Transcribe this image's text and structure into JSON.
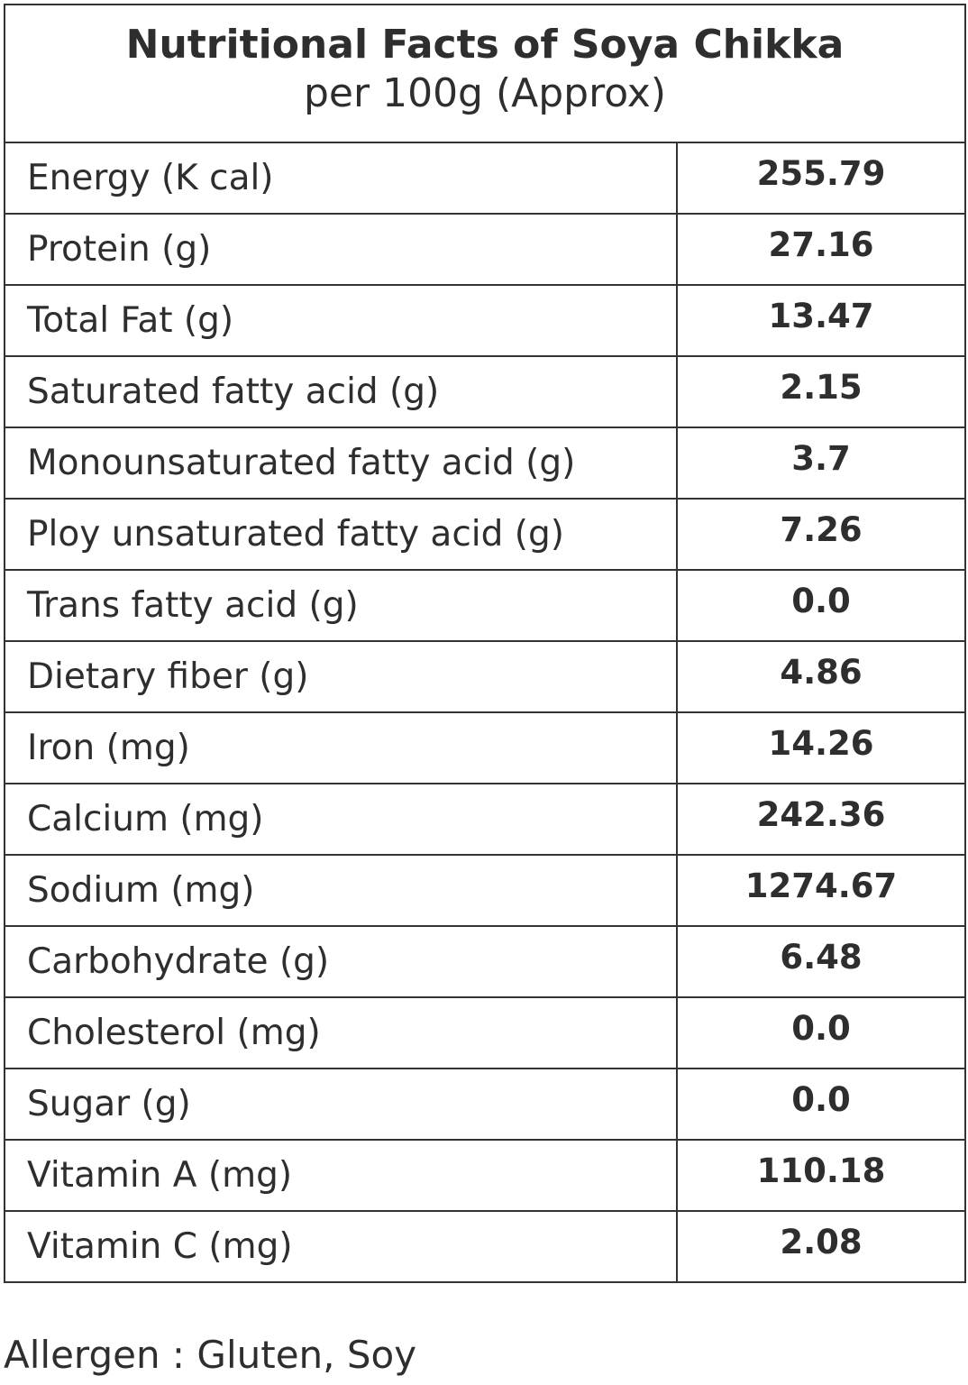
{
  "header": {
    "title": "Nutritional Facts of Soya Chikka",
    "subtitle": "per 100g (Approx)"
  },
  "table": {
    "rows": [
      [
        "Energy (K cal)",
        "255.79"
      ],
      [
        "Protein (g)",
        "27.16"
      ],
      [
        "Total Fat (g)",
        "13.47"
      ],
      [
        "Saturated fatty acid (g)",
        "2.15"
      ],
      [
        "Monounsaturated fatty acid (g)",
        "3.7"
      ],
      [
        "Ploy unsaturated fatty acid (g)",
        "7.26"
      ],
      [
        "Trans fatty acid (g)",
        "0.0"
      ],
      [
        "Dietary fiber (g)",
        "4.86"
      ],
      [
        "Iron (mg)",
        "14.26"
      ],
      [
        "Calcium (mg)",
        "242.36"
      ],
      [
        "Sodium (mg)",
        "1274.67"
      ],
      [
        "Carbohydrate (g)",
        "6.48"
      ],
      [
        "Cholesterol (mg)",
        "0.0"
      ],
      [
        "Sugar (g)",
        "0.0"
      ],
      [
        "Vitamin A (mg)",
        "110.18"
      ],
      [
        "Vitamin C (mg)",
        "2.08"
      ]
    ]
  },
  "footer": {
    "allergen": "Allergen : Gluten, Soy"
  }
}
